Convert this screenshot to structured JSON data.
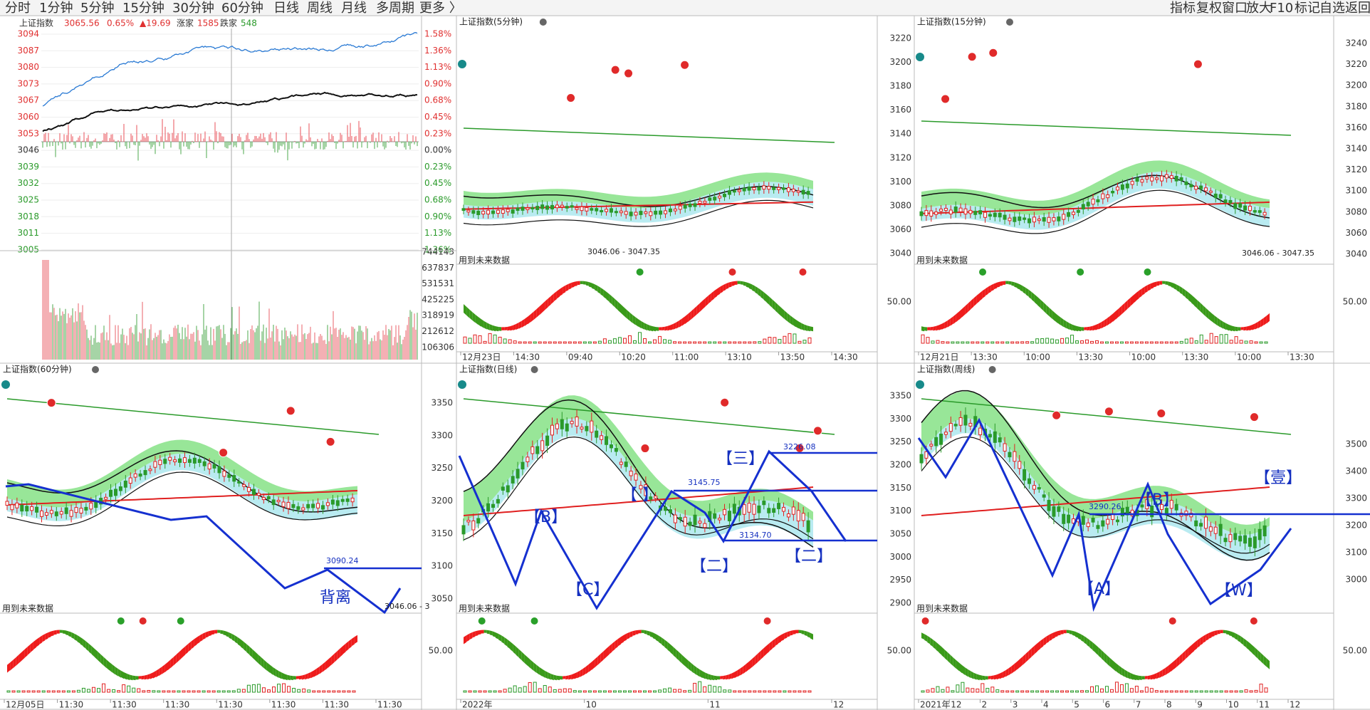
{
  "toolbar": {
    "left": [
      "分时",
      "1分钟",
      "5分钟",
      "15分钟",
      "30分钟",
      "60分钟",
      "日线",
      "周线",
      "月线",
      "多周期",
      "更多 〉"
    ],
    "right": [
      "指标",
      "复权",
      "窗口",
      "放大",
      "F10",
      "标记",
      "自选",
      "返回"
    ]
  },
  "intraday": {
    "title": "上证指数",
    "price": "3065.56",
    "change_pct": "0.65%",
    "change": "▲19.69",
    "up_label": "涨家",
    "up": "1585",
    "down_label": "跌家",
    "down": "548",
    "price_ticks": [
      "3094",
      "3087",
      "3080",
      "3073",
      "3067",
      "3060",
      "3053",
      "3046",
      "3039",
      "3032",
      "3025",
      "3018",
      "3011",
      "3005"
    ],
    "pct_ticks": [
      "1.58%",
      "1.36%",
      "1.13%",
      "0.90%",
      "0.68%",
      "0.45%",
      "0.23%",
      "0.00%",
      "0.23%",
      "0.45%",
      "0.68%",
      "0.90%",
      "1.13%",
      "1.36%"
    ],
    "volume_ticks": [
      "744143",
      "637837",
      "531531",
      "425225",
      "318919",
      "212612",
      "106306"
    ]
  },
  "panels": [
    {
      "title": "上证指数(5分钟)",
      "note": "用到未来数据",
      "x_labels": [
        "12月23日",
        "14:30",
        "09:40",
        "10:20",
        "11:00",
        "13:10",
        "13:50",
        "14:30"
      ],
      "annotations": [
        "3046.06 - 3047.35"
      ]
    },
    {
      "title": "上证指数(15分钟)",
      "note": "用到未来数据",
      "y_ticks": [
        "3220",
        "3200",
        "3180",
        "3160",
        "3140",
        "3120",
        "3100",
        "3080",
        "3060",
        "3040"
      ],
      "y_ticks_right": [
        "3240",
        "3220",
        "3200",
        "3180",
        "3160",
        "3140",
        "3120",
        "3100",
        "3080",
        "3060",
        "3040"
      ],
      "indicator_tick": "50.00",
      "x_labels": [
        "12月21日",
        "13:30",
        "10:00",
        "13:30",
        "10:00",
        "13:30",
        "10:00",
        "13:30"
      ],
      "annotations": [
        "3046.06 - 3047.35"
      ]
    },
    {
      "title": "上证指数(60分钟)",
      "note": "用到未来数据",
      "x_labels": [
        "12月05日",
        "11:30",
        "11:30",
        "11:30",
        "11:30",
        "11:30",
        "11:30",
        "11:30"
      ],
      "annotations": [
        "3090.24",
        "背离",
        "3046.06 - 3"
      ]
    },
    {
      "title": "上证指数(日线)",
      "note": "用到未来数据",
      "y_ticks": [
        "3350",
        "3300",
        "3250",
        "3200",
        "3150",
        "3100",
        "3050"
      ],
      "indicator_tick": "50.00",
      "x_labels": [
        "2022年",
        "10",
        "11",
        "12"
      ],
      "annotations": [
        "【B】",
        "【C】",
        "【  】",
        "【二】",
        "【三】",
        "【二】",
        "3145.75",
        "3226.08",
        "3134.70"
      ]
    },
    {
      "title": "上证指数(周线)",
      "note": "用到未来数据",
      "y_ticks": [
        "3350",
        "3300",
        "3250",
        "3200",
        "3150",
        "3100",
        "3050",
        "3000",
        "2950",
        "2900"
      ],
      "y_ticks_right": [
        "3500",
        "3400",
        "3300",
        "3200",
        "3100",
        "3000"
      ],
      "indicator_tick": "50.00",
      "x_labels": [
        "2021年",
        "12",
        "2",
        "3",
        "4",
        "5",
        "6",
        "7",
        "8",
        "9",
        "10",
        "11",
        "12"
      ],
      "annotations": [
        "【B】",
        "【A】",
        "【W】",
        "【壹】",
        "3290.26"
      ]
    }
  ]
}
